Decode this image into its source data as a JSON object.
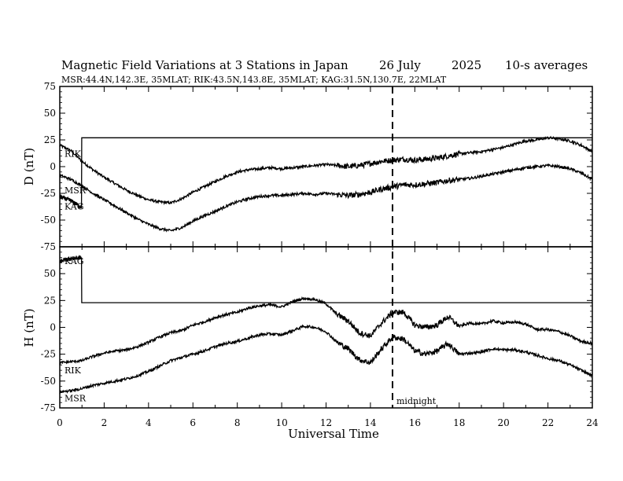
{
  "figure": {
    "title": "Magnetic Field Variations at 3 Stations in Japan",
    "date": "26 July",
    "year": "2025",
    "averaging": "10-s averages",
    "stations_line": "MSR:44.4N,142.3E, 35MLAT;  RIK:43.5N,143.8E, 35MLAT;  KAG:31.5N,130.7E, 22MLAT",
    "xlabel": "Universal Time",
    "midnight_label": "midnight"
  },
  "chart_data": [
    {
      "type": "line",
      "ylabel": "D (nT)",
      "ylim": [
        -75,
        75
      ],
      "yticks": [
        -75,
        -50,
        -25,
        0,
        25,
        50,
        75
      ],
      "xlim": [
        0,
        24
      ],
      "xticks": [
        0,
        2,
        4,
        6,
        8,
        10,
        12,
        14,
        16,
        18,
        20,
        22,
        24
      ],
      "midnight_ut": 15,
      "series": [
        {
          "name": "RIK",
          "x": [
            0,
            0.5,
            1,
            1.5,
            2,
            2.5,
            3,
            3.5,
            4,
            4.5,
            5,
            5.5,
            6,
            6.5,
            7,
            7.5,
            8,
            8.5,
            9,
            9.5,
            10,
            10.5,
            11,
            11.5,
            12,
            12.5,
            13,
            13.5,
            14,
            14.5,
            15,
            15.5,
            16,
            16.5,
            17,
            17.5,
            18,
            18.5,
            19,
            19.5,
            20,
            20.5,
            21,
            21.5,
            22,
            22.5,
            23,
            23.5,
            24
          ],
          "values": [
            20,
            15,
            5,
            -3,
            -10,
            -16,
            -22,
            -27,
            -31,
            -33,
            -34,
            -30,
            -24,
            -19,
            -14,
            -9,
            -5,
            -3,
            -2,
            -1,
            -2,
            -1,
            0,
            1,
            2,
            1,
            0,
            1,
            3,
            5,
            6,
            7,
            6,
            7,
            8,
            10,
            12,
            13,
            14,
            16,
            18,
            21,
            24,
            25,
            27,
            26,
            24,
            20,
            14
          ]
        },
        {
          "name": "MSR",
          "x": [
            0,
            0.5,
            1,
            1.5,
            2,
            2.5,
            3,
            3.5,
            4,
            4.5,
            5,
            5.5,
            6,
            6.5,
            7,
            7.5,
            8,
            8.5,
            9,
            9.5,
            10,
            10.5,
            11,
            11.5,
            12,
            12.5,
            13,
            13.5,
            14,
            14.5,
            15,
            15.5,
            16,
            16.5,
            17,
            17.5,
            18,
            18.5,
            19,
            19.5,
            20,
            20.5,
            21,
            21.5,
            22,
            22.5,
            23,
            23.5,
            24
          ],
          "values": [
            -8,
            -12,
            -18,
            -25,
            -31,
            -37,
            -43,
            -49,
            -54,
            -58,
            -60,
            -57,
            -51,
            -46,
            -42,
            -37,
            -33,
            -30,
            -28,
            -27,
            -27,
            -26,
            -25,
            -26,
            -25,
            -26,
            -27,
            -26,
            -24,
            -21,
            -19,
            -17,
            -17,
            -16,
            -15,
            -13,
            -12,
            -11,
            -9,
            -7,
            -5,
            -3,
            -1,
            0,
            1,
            0,
            -2,
            -6,
            -12
          ]
        },
        {
          "name": "KAG",
          "x": [
            0,
            0.5,
            0.98,
            0.99,
            1.1,
            12,
            24
          ],
          "values": [
            -28,
            -32,
            -38,
            27,
            27,
            27,
            27
          ]
        }
      ]
    },
    {
      "type": "line",
      "ylabel": "H (nT)",
      "ylim": [
        -75,
        75
      ],
      "yticks": [
        -75,
        -50,
        -25,
        0,
        25,
        50
      ],
      "xlim": [
        0,
        24
      ],
      "xticks": [
        0,
        2,
        4,
        6,
        8,
        10,
        12,
        14,
        16,
        18,
        20,
        22,
        24
      ],
      "midnight_ut": 15,
      "series": [
        {
          "name": "RIK",
          "x": [
            0,
            0.5,
            1,
            1.5,
            2,
            2.5,
            3,
            3.5,
            4,
            4.5,
            5,
            5.5,
            6,
            6.5,
            7,
            7.5,
            8,
            8.5,
            9,
            9.5,
            10,
            10.5,
            11,
            11.5,
            12,
            12.5,
            13,
            13.5,
            14,
            14.5,
            15,
            15.5,
            16,
            16.5,
            17,
            17.5,
            18,
            18.5,
            19,
            19.5,
            20,
            20.5,
            21,
            21.5,
            22,
            22.5,
            23,
            23.5,
            24
          ],
          "values": [
            -33,
            -32,
            -31,
            -27,
            -24,
            -22,
            -21,
            -18,
            -14,
            -9,
            -5,
            -3,
            2,
            5,
            9,
            12,
            14,
            18,
            20,
            21,
            19,
            24,
            27,
            26,
            22,
            12,
            6,
            -5,
            -8,
            4,
            14,
            14,
            2,
            0,
            2,
            10,
            1,
            4,
            3,
            6,
            4,
            5,
            3,
            -2,
            -2,
            -4,
            -8,
            -13,
            -15
          ]
        },
        {
          "name": "MSR",
          "x": [
            0,
            0.5,
            1,
            1.5,
            2,
            2.5,
            3,
            3.5,
            4,
            4.5,
            5,
            5.5,
            6,
            6.5,
            7,
            7.5,
            8,
            8.5,
            9,
            9.5,
            10,
            10.5,
            11,
            11.5,
            12,
            12.5,
            13,
            13.5,
            14,
            14.5,
            15,
            15.5,
            16,
            16.5,
            17,
            17.5,
            18,
            18.5,
            19,
            19.5,
            20,
            20.5,
            21,
            21.5,
            22,
            22.5,
            23,
            23.5,
            24
          ],
          "values": [
            -60,
            -59,
            -57,
            -54,
            -52,
            -50,
            -48,
            -45,
            -41,
            -36,
            -31,
            -28,
            -25,
            -22,
            -18,
            -15,
            -13,
            -10,
            -7,
            -6,
            -7,
            -3,
            1,
            0,
            -4,
            -14,
            -20,
            -30,
            -33,
            -20,
            -9,
            -11,
            -22,
            -25,
            -22,
            -15,
            -25,
            -24,
            -23,
            -20,
            -21,
            -21,
            -23,
            -26,
            -29,
            -31,
            -35,
            -40,
            -45
          ]
        },
        {
          "name": "KAG",
          "x": [
            0,
            0.5,
            0.98,
            0.99,
            1.1,
            12,
            24
          ],
          "values": [
            62,
            64,
            65,
            23,
            23,
            23,
            23
          ]
        }
      ]
    }
  ]
}
